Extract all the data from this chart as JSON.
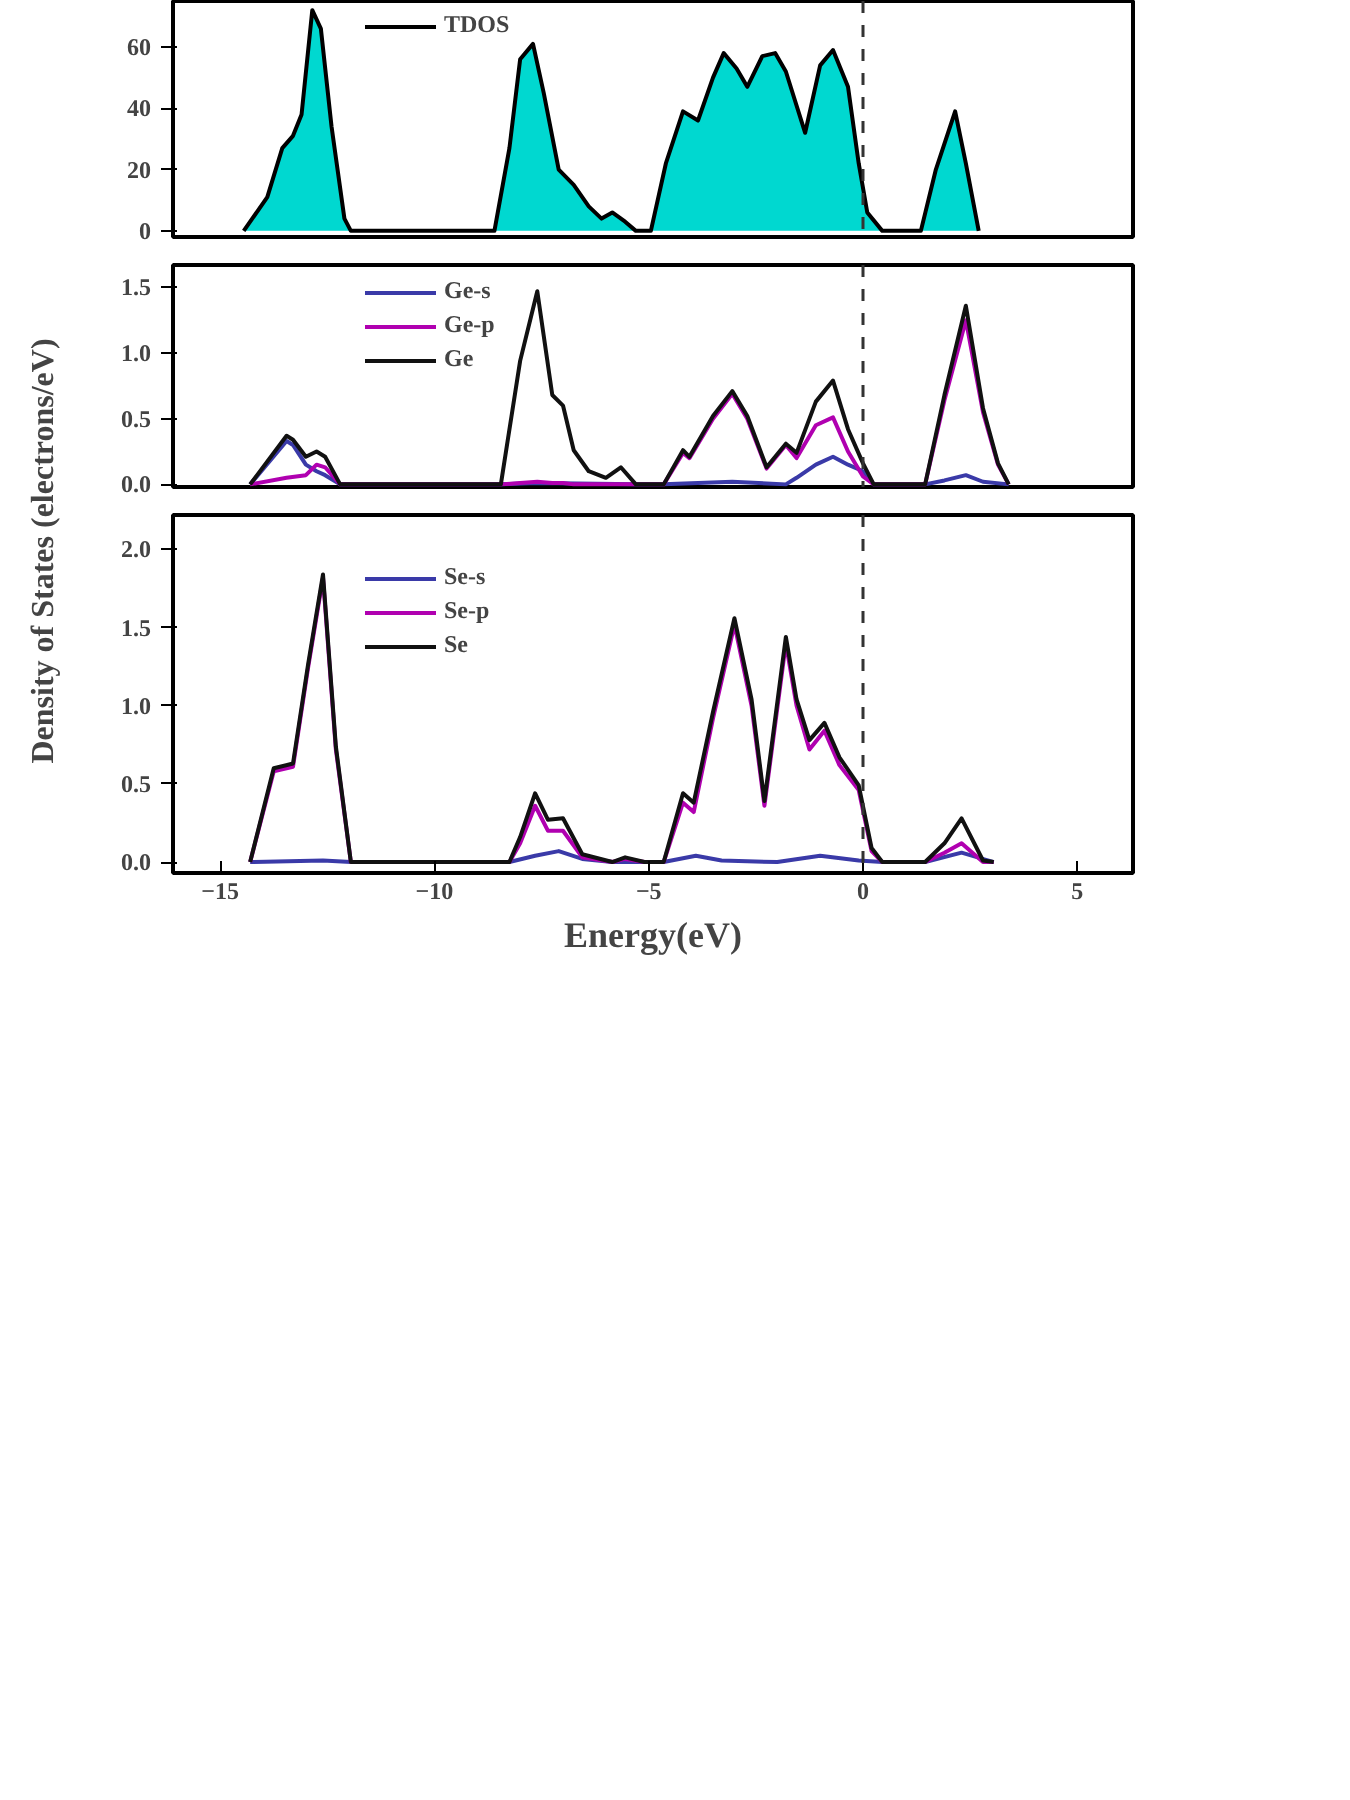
{
  "chart_data": [
    {
      "type": "area",
      "xlim": [
        -16.1,
        6.3
      ],
      "ylim": [
        -2,
        75
      ],
      "yticks": [
        0,
        20,
        40,
        60
      ],
      "tick_labels": "y",
      "grid": false,
      "legend": "top left",
      "marker": "none",
      "line_style": "solid",
      "ref_lines": [
        {
          "axis": "x",
          "value": 0,
          "line_style": "dashed",
          "color": "#333333"
        }
      ],
      "series": [
        {
          "name": "TDOS",
          "color": "#00d8d0",
          "x": [
            -14.45,
            -13.9,
            -13.55,
            -13.3,
            -13.1,
            -12.85,
            -12.65,
            -12.4,
            -12.1,
            -11.95,
            -8.6,
            -8.25,
            -8.0,
            -7.7,
            -7.45,
            -7.1,
            -6.75,
            -6.4,
            -6.1,
            -5.85,
            -5.55,
            -5.3,
            -4.95,
            -4.6,
            -4.2,
            -3.85,
            -3.5,
            -3.25,
            -2.95,
            -2.7,
            -2.35,
            -2.05,
            -1.8,
            -1.35,
            -1.0,
            -0.7,
            -0.35,
            -0.1,
            0.1,
            0.45,
            1.35,
            1.7,
            2.15,
            2.4,
            2.7
          ],
          "values": [
            0,
            11,
            27,
            31,
            38,
            72,
            66,
            34,
            4,
            0,
            0,
            27,
            56,
            61,
            45,
            20,
            15,
            8,
            4,
            6,
            3,
            0,
            0,
            22,
            39,
            36,
            50,
            58,
            53,
            47,
            57,
            58,
            52,
            32,
            54,
            59,
            47,
            22,
            6,
            0,
            0,
            20,
            39,
            22,
            0
          ]
        }
      ]
    },
    {
      "type": "line",
      "xlim": [
        -16.1,
        6.3
      ],
      "ylim": [
        -0.02,
        1.67
      ],
      "yticks": [
        {
          "value": 0,
          "label": "0.0"
        },
        0.5,
        {
          "value": 1,
          "label": "1.0"
        },
        1.5
      ],
      "tick_labels": "y",
      "grid": false,
      "legend": "top left",
      "marker": "none",
      "line_style": "solid",
      "ylabel": "Density of States (electrons/eV)",
      "ref_lines": [
        {
          "axis": "x",
          "value": 0,
          "line_style": "dashed",
          "color": "#333333"
        }
      ],
      "series": [
        {
          "name": "Ge-s",
          "color": "#3a3aa8",
          "x": [
            -14.3,
            -13.45,
            -13.3,
            -13.0,
            -12.75,
            -12.55,
            -12.2,
            -8.45,
            -7.6,
            -5.3,
            -4.65,
            -3.05,
            -1.8,
            -1.55,
            -1.1,
            -0.7,
            -0.35,
            0,
            0.25,
            1.45,
            1.9,
            2.4,
            2.8,
            3.4
          ],
          "values": [
            0,
            0.33,
            0.3,
            0.15,
            0.1,
            0.07,
            0,
            0,
            0.01,
            0,
            0,
            0.02,
            0,
            0.05,
            0.15,
            0.21,
            0.15,
            0.1,
            0,
            0,
            0.03,
            0.07,
            0.02,
            0
          ]
        },
        {
          "name": "Ge-p",
          "color": "#b000b0",
          "x": [
            -14.3,
            -13.45,
            -13.0,
            -12.75,
            -12.55,
            -12.2,
            -8.45,
            -8.0,
            -7.6,
            -7.25,
            -7.0,
            -6.75,
            -6.4,
            -6.0,
            -5.65,
            -5.3,
            -4.65,
            -4.2,
            -4.05,
            -3.5,
            -3.05,
            -2.7,
            -2.25,
            -1.8,
            -1.55,
            -1.1,
            -0.7,
            -0.35,
            0,
            0.25,
            1.45,
            1.9,
            2.4,
            2.8,
            3.15,
            3.4
          ],
          "values": [
            0,
            0.05,
            0.07,
            0.15,
            0.13,
            0,
            0,
            0.01,
            0.02,
            0.01,
            0.01,
            0,
            0,
            0,
            0,
            0,
            0,
            0.24,
            0.2,
            0.5,
            0.69,
            0.5,
            0.12,
            0.3,
            0.2,
            0.45,
            0.51,
            0.25,
            0.06,
            0,
            0,
            0.64,
            1.25,
            0.55,
            0.15,
            0
          ]
        },
        {
          "name": "Ge",
          "color": "#111111",
          "x": [
            -14.3,
            -13.45,
            -13.3,
            -13.0,
            -12.75,
            -12.55,
            -12.2,
            -8.45,
            -8.0,
            -7.6,
            -7.25,
            -7.0,
            -6.75,
            -6.4,
            -6.0,
            -5.65,
            -5.3,
            -4.65,
            -4.2,
            -4.05,
            -3.5,
            -3.05,
            -2.7,
            -2.25,
            -1.8,
            -1.55,
            -1.1,
            -0.7,
            -0.35,
            0,
            0.25,
            1.45,
            1.9,
            2.4,
            2.8,
            3.15,
            3.4
          ],
          "values": [
            0,
            0.37,
            0.34,
            0.21,
            0.25,
            0.21,
            0,
            0,
            0.94,
            1.47,
            0.68,
            0.6,
            0.26,
            0.1,
            0.05,
            0.13,
            0,
            0,
            0.26,
            0.21,
            0.52,
            0.71,
            0.52,
            0.13,
            0.31,
            0.24,
            0.63,
            0.79,
            0.42,
            0.16,
            0,
            0,
            0.68,
            1.36,
            0.58,
            0.16,
            0
          ]
        }
      ]
    },
    {
      "type": "line",
      "xlim": [
        -16.1,
        6.3
      ],
      "ylim": [
        -0.07,
        2.22
      ],
      "xticks": [
        -15,
        -10,
        -5,
        0,
        5
      ],
      "yticks": [
        {
          "value": 0,
          "label": "0.0"
        },
        0.5,
        {
          "value": 1,
          "label": "1.0"
        },
        1.5,
        {
          "value": 2,
          "label": "2.0"
        }
      ],
      "grid": false,
      "legend": "top left",
      "marker": "none",
      "line_style": "solid",
      "xlabel": "Energy(eV)",
      "ref_lines": [
        {
          "axis": "x",
          "value": 0,
          "line_style": "dashed",
          "color": "#333333"
        }
      ],
      "series": [
        {
          "name": "Se-s",
          "color": "#3a3aa8",
          "x": [
            -14.3,
            -12.6,
            -11.95,
            -8.25,
            -7.65,
            -7.1,
            -6.55,
            -5.85,
            -4.65,
            -3.9,
            -3.3,
            -2.0,
            -1.0,
            -0.1,
            0.45,
            1.45,
            2.3,
            3.05
          ],
          "values": [
            0,
            0.01,
            0,
            0,
            0.04,
            0.07,
            0.02,
            0,
            0,
            0.04,
            0.01,
            0,
            0.04,
            0.01,
            0,
            0,
            0.06,
            0
          ]
        },
        {
          "name": "Se-p",
          "color": "#b000b0",
          "x": [
            -14.3,
            -13.75,
            -13.3,
            -12.95,
            -12.6,
            -12.3,
            -11.95,
            -8.25,
            -8.0,
            -7.65,
            -7.35,
            -7.0,
            -6.55,
            -5.85,
            -5.55,
            -5.1,
            -4.65,
            -4.2,
            -3.95,
            -3.5,
            -3.0,
            -2.6,
            -2.3,
            -1.8,
            -1.55,
            -1.25,
            -0.9,
            -0.55,
            -0.1,
            0.2,
            0.45,
            1.45,
            1.9,
            2.3,
            2.8,
            3.05
          ],
          "values": [
            0,
            0.58,
            0.61,
            1.24,
            1.82,
            0.72,
            0,
            0,
            0.12,
            0.36,
            0.2,
            0.2,
            0.03,
            0,
            0.02,
            0,
            0,
            0.38,
            0.32,
            0.92,
            1.52,
            1.0,
            0.36,
            1.4,
            1.0,
            0.72,
            0.84,
            0.62,
            0.46,
            0.07,
            0,
            0,
            0.06,
            0.12,
            0,
            0
          ]
        },
        {
          "name": "Se",
          "color": "#111111",
          "x": [
            -14.3,
            -13.75,
            -13.3,
            -12.95,
            -12.6,
            -12.3,
            -11.95,
            -8.25,
            -8.0,
            -7.65,
            -7.35,
            -7.0,
            -6.55,
            -5.85,
            -5.55,
            -5.1,
            -4.65,
            -4.2,
            -3.95,
            -3.5,
            -3.0,
            -2.6,
            -2.3,
            -1.8,
            -1.55,
            -1.25,
            -0.9,
            -0.55,
            -0.1,
            0.2,
            0.45,
            1.45,
            1.9,
            2.3,
            2.8,
            3.05
          ],
          "values": [
            0,
            0.6,
            0.63,
            1.26,
            1.84,
            0.74,
            0,
            0,
            0.16,
            0.44,
            0.27,
            0.28,
            0.05,
            0,
            0.03,
            0,
            0,
            0.44,
            0.38,
            0.96,
            1.56,
            1.04,
            0.39,
            1.44,
            1.04,
            0.78,
            0.89,
            0.67,
            0.49,
            0.09,
            0,
            0,
            0.12,
            0.28,
            0.01,
            0
          ]
        }
      ]
    }
  ]
}
